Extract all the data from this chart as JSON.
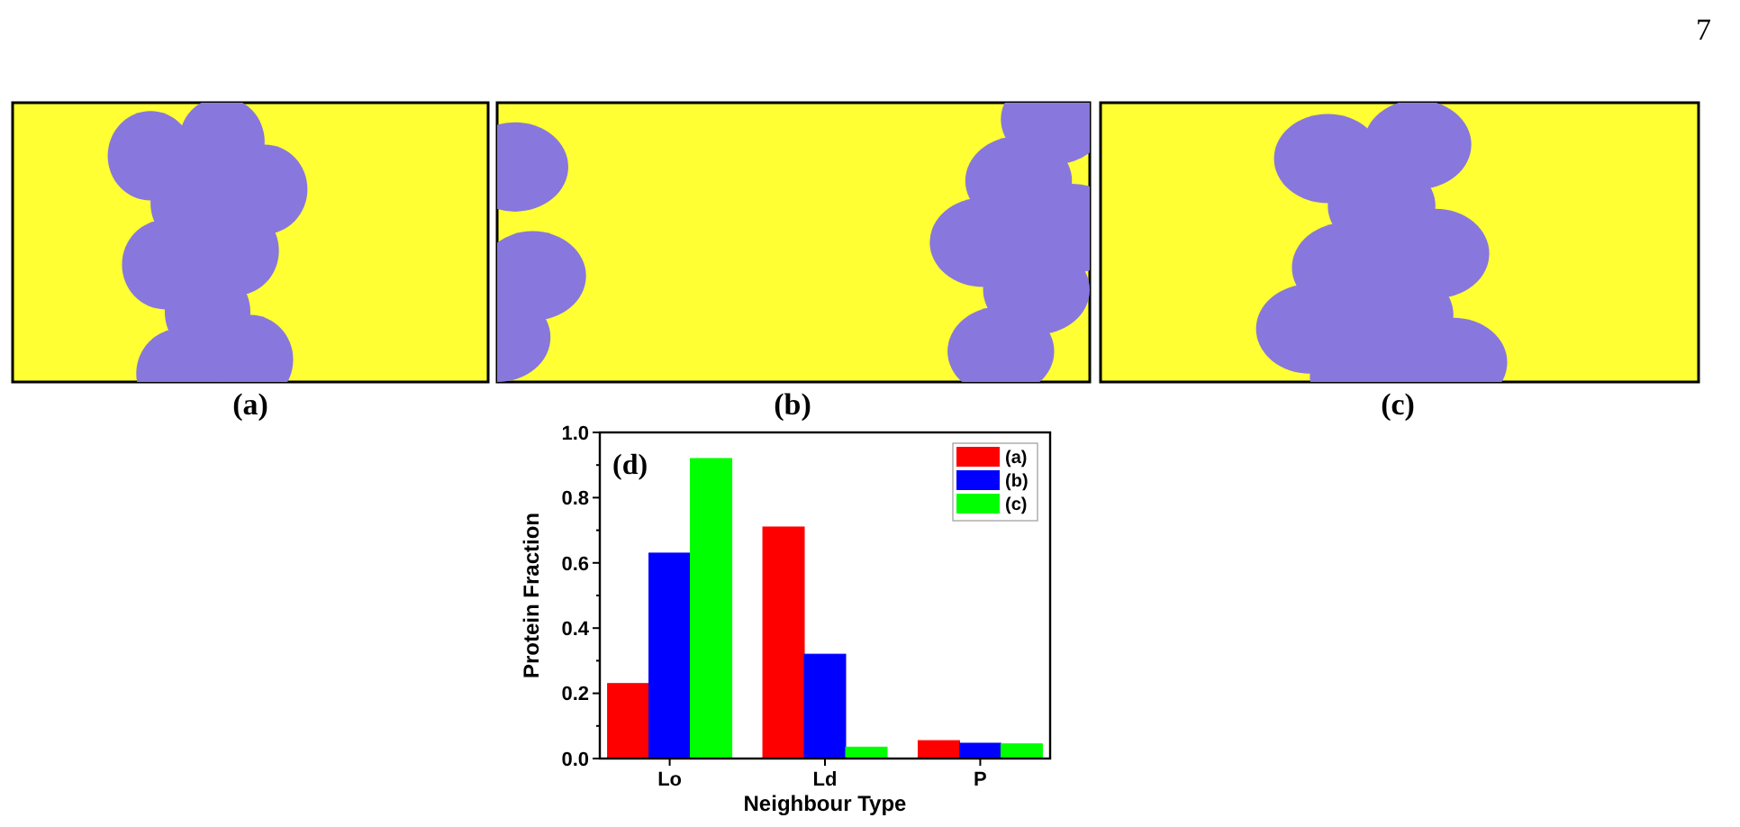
{
  "chart_data": {
    "type": "bar",
    "categories": [
      "Lo",
      "Ld",
      "P"
    ],
    "series": [
      {
        "name": "(a)",
        "color": "#ff0000",
        "values": [
          0.23,
          0.71,
          0.055
        ]
      },
      {
        "name": "(b)",
        "color": "#0000ff",
        "values": [
          0.63,
          0.32,
          0.047
        ]
      },
      {
        "name": "(c)",
        "color": "#00ff00",
        "values": [
          0.92,
          0.035,
          0.045
        ]
      }
    ],
    "ylim": [
      0,
      1
    ],
    "yticks": [
      {
        "value": 0,
        "label": "0.0"
      },
      {
        "value": 0.1,
        "label": null
      },
      {
        "value": 0.2,
        "label": "0.2"
      },
      {
        "value": 0.3,
        "label": null
      },
      {
        "value": 0.4,
        "label": "0.4"
      },
      {
        "value": 0.5,
        "label": null
      },
      {
        "value": 0.6,
        "label": "0.6"
      },
      {
        "value": 0.7,
        "label": null
      },
      {
        "value": 0.8,
        "label": "0.8"
      },
      {
        "value": 0.9,
        "label": null
      },
      {
        "value": 1,
        "label": "1.0"
      }
    ],
    "xlabel": "Neighbour Type",
    "ylabel": "Protein Fraction",
    "legend": "top right",
    "grid": false,
    "annotations": [
      "7",
      "(a)",
      "(b)",
      "(c)",
      "(d)"
    ]
  }
}
